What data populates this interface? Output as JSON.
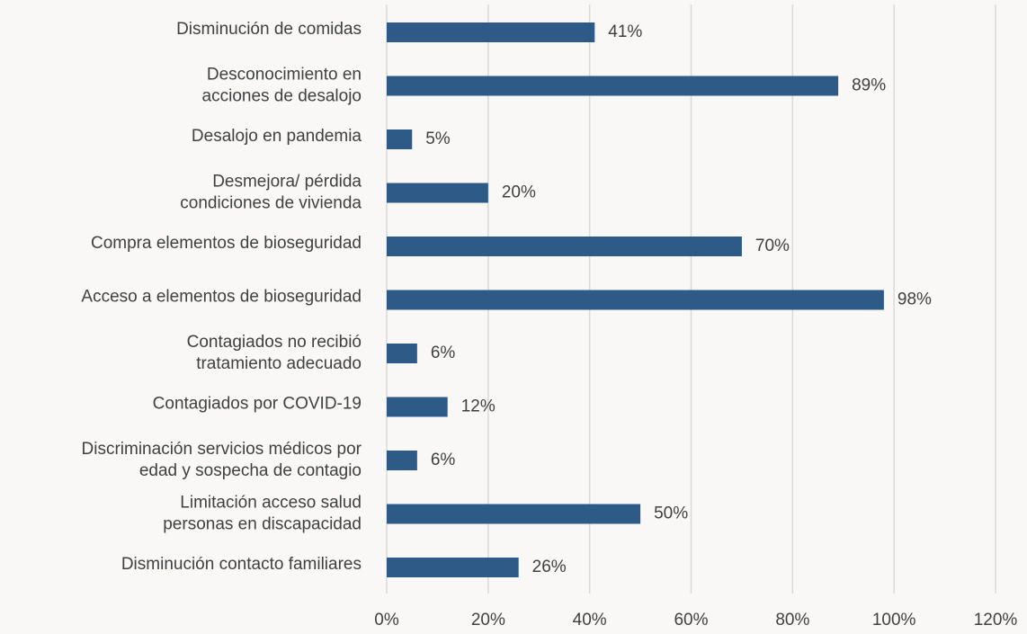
{
  "chart_data": {
    "type": "bar",
    "orientation": "horizontal",
    "categories": [
      [
        "Disminución de comidas"
      ],
      [
        "Desconocimiento en",
        "acciones de desalojo"
      ],
      [
        "Desalojo en pandemia"
      ],
      [
        "Desmejora/ pérdida",
        "condiciones de vivienda"
      ],
      [
        "Compra elementos de bioseguridad"
      ],
      [
        "Acceso a elementos de bioseguridad"
      ],
      [
        "Contagiados no recibió",
        "tratamiento adecuado"
      ],
      [
        "Contagiados por COVID-19"
      ],
      [
        "Discriminación servicios médicos por",
        "edad y sospecha de contagio"
      ],
      [
        "Limitación acceso salud",
        "personas en discapacidad"
      ],
      [
        "Disminución contacto familiares"
      ]
    ],
    "values": [
      41,
      89,
      5,
      20,
      70,
      98,
      6,
      12,
      6,
      50,
      26
    ],
    "value_labels": [
      "41%",
      "89%",
      "5%",
      "20%",
      "70%",
      "98%",
      "6%",
      "12%",
      "6%",
      "50%",
      "26%"
    ],
    "color": "#2e5a88",
    "xlim": [
      0,
      120
    ],
    "xticks": [
      {
        "value": 0,
        "label": "0%"
      },
      {
        "value": 20,
        "label": "20%"
      },
      {
        "value": 40,
        "label": "40%"
      },
      {
        "value": 60,
        "label": "60%"
      },
      {
        "value": 80,
        "label": "80%"
      },
      {
        "value": 100,
        "label": "100%"
      },
      {
        "value": 120,
        "label": "120%"
      }
    ],
    "grid": true
  }
}
